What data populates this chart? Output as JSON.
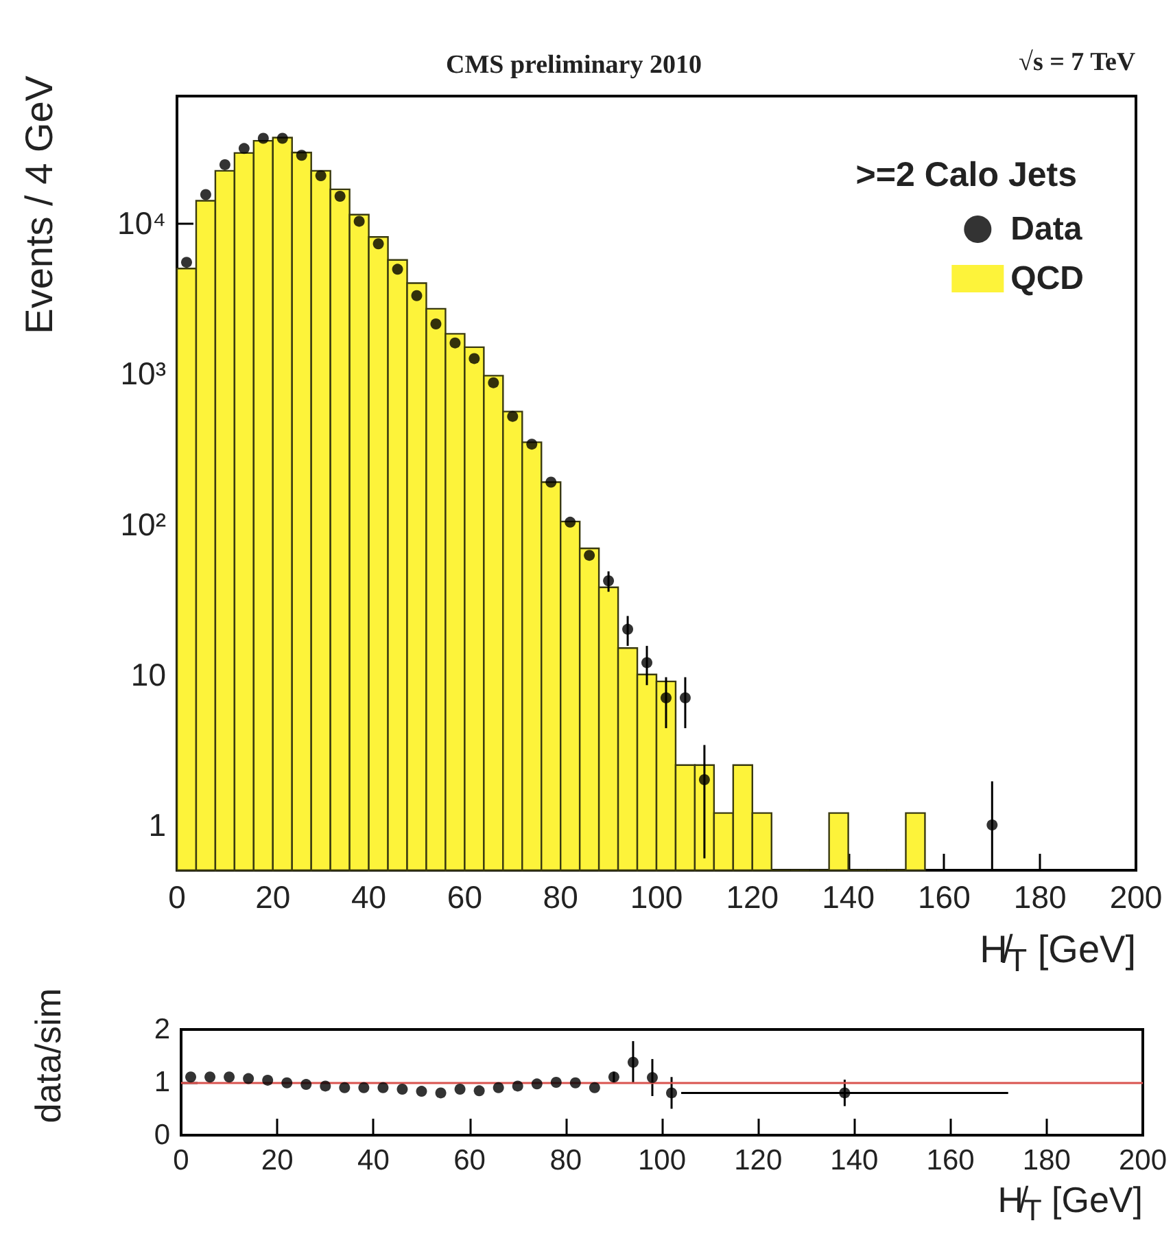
{
  "chart_data": [
    {
      "type": "histogram",
      "xlabel": "H̸$_{T}$ [GeV]",
      "ylabel": "Events / 4 GeV",
      "legend_title": ">=2 Calo Jets",
      "annotations": [
        "CMS preliminary 2010",
        "√s = 7 TeV"
      ],
      "bins": [
        0,
        4,
        8,
        12,
        16,
        20,
        24,
        28,
        32,
        36,
        40,
        44,
        48,
        52,
        56,
        60,
        64,
        68,
        72,
        76,
        80,
        84,
        88,
        92,
        96,
        100,
        104,
        108,
        112,
        116,
        120,
        124,
        128,
        132,
        136,
        140,
        144,
        148,
        152,
        156
      ],
      "series": [
        {
          "name": "Data",
          "type": "scatter",
          "color": "#000000",
          "x": [
            2,
            6,
            10,
            14,
            18,
            22,
            26,
            30,
            34,
            38,
            42,
            46,
            50,
            54,
            58,
            62,
            66,
            70,
            74,
            78,
            82,
            86,
            90,
            94,
            98,
            102,
            106,
            110,
            170
          ],
          "values": [
            5500,
            15500,
            24500,
            31400,
            36700,
            36700,
            28300,
            20700,
            15100,
            10300,
            7300,
            4940,
            3300,
            2140,
            1600,
            1260,
            870,
            520,
            340,
            190,
            103,
            62,
            42,
            20,
            12,
            7,
            7,
            2,
            1
          ],
          "errors": [
            null,
            null,
            null,
            null,
            null,
            null,
            null,
            null,
            null,
            null,
            null,
            null,
            null,
            null,
            null,
            null,
            null,
            null,
            null,
            null,
            null,
            null,
            6.5,
            4.5,
            3.5,
            2.6,
            2.6,
            1.4,
            [
              0.5,
              1.95
            ]
          ]
        },
        {
          "name": "QCD",
          "type": "histogram",
          "color": "#fdf33a",
          "values": [
            5000,
            14100,
            22300,
            29300,
            35300,
            37100,
            29500,
            22300,
            16800,
            11400,
            8100,
            5700,
            4000,
            2700,
            1840,
            1500,
            970,
            560,
            350,
            190,
            104,
            69,
            38,
            15,
            10,
            9,
            2.5,
            2.5,
            1.2,
            2.5,
            1.2,
            null,
            null,
            null,
            1.2,
            null,
            null,
            null,
            1.2
          ]
        }
      ],
      "xlim": [
        0,
        200
      ],
      "xticks": [
        0,
        20,
        40,
        60,
        80,
        100,
        120,
        140,
        160,
        180,
        200
      ],
      "ylim": [
        0.5,
        70000
      ],
      "yticks": [
        1,
        10,
        {
          "value": 100,
          "label": "10²"
        },
        {
          "value": 1000,
          "label": "10³"
        },
        {
          "value": 10000,
          "label": "10⁴"
        }
      ],
      "log": "y",
      "grid": false,
      "legend": "top right",
      "marker": "circle"
    },
    {
      "type": "scatter",
      "xlabel": "H̸$_{T}$ [GeV]",
      "ylabel": "data/sim",
      "color": "#000000",
      "x": [
        2,
        6,
        10,
        14,
        18,
        22,
        26,
        30,
        34,
        38,
        42,
        46,
        50,
        54,
        58,
        62,
        66,
        70,
        74,
        78,
        82,
        86,
        90,
        94,
        98,
        102,
        138
      ],
      "values": [
        1.1,
        1.1,
        1.1,
        1.07,
        1.04,
        0.99,
        0.96,
        0.93,
        0.9,
        0.9,
        0.9,
        0.87,
        0.83,
        0.8,
        0.87,
        0.84,
        0.9,
        0.93,
        0.97,
        1.0,
        0.99,
        0.9,
        1.1,
        1.38,
        1.09,
        0.8,
        0.8
      ],
      "errors": [
        null,
        null,
        null,
        null,
        null,
        null,
        null,
        null,
        null,
        null,
        null,
        null,
        null,
        null,
        null,
        null,
        null,
        null,
        null,
        null,
        null,
        null,
        0.1,
        0.4,
        0.35,
        0.3,
        0.25
      ],
      "xerrors": [
        null,
        null,
        null,
        null,
        null,
        null,
        null,
        null,
        null,
        null,
        null,
        null,
        null,
        null,
        null,
        null,
        null,
        null,
        null,
        null,
        null,
        null,
        null,
        null,
        null,
        null,
        34
      ],
      "xlim": [
        0,
        200
      ],
      "xticks": [
        0,
        20,
        40,
        60,
        80,
        100,
        120,
        140,
        160,
        180,
        200
      ],
      "ylim": [
        0,
        2
      ],
      "yticks": [
        0,
        1,
        2
      ],
      "ref_lines": [
        {
          "axis": "y",
          "value": 1,
          "color": "#d9534f"
        }
      ],
      "grid": false,
      "marker": "circle"
    }
  ]
}
